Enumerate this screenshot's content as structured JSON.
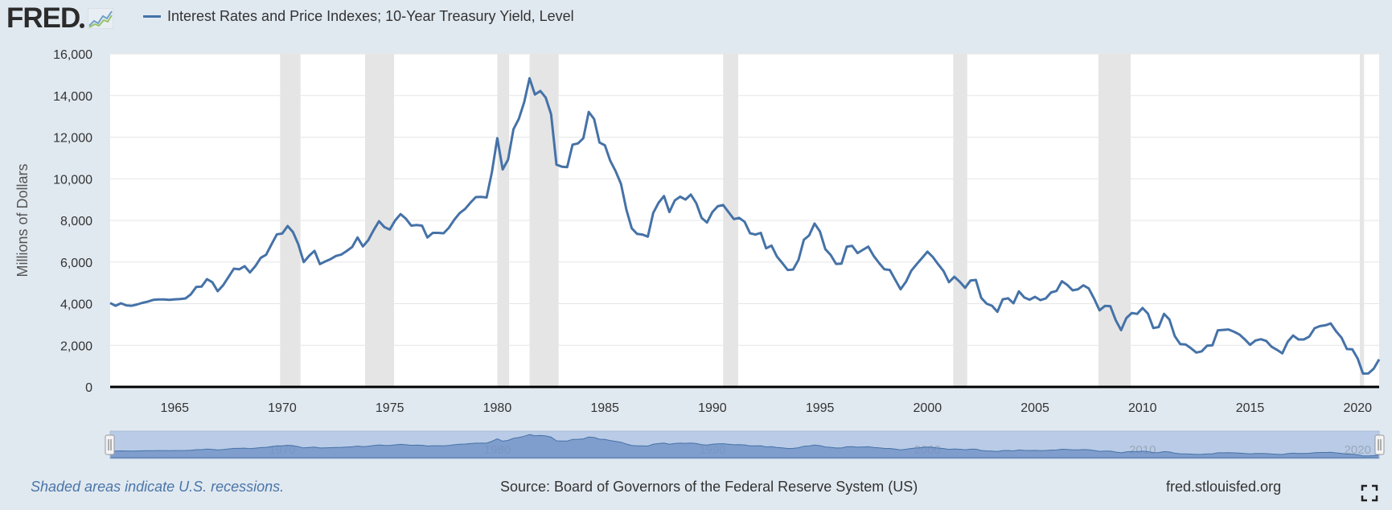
{
  "header": {
    "logo_text": "FRED",
    "logo_icon": "fred-graph-icon",
    "legend_label": "Interest Rates and Price Indexes; 10-Year Treasury Yield, Level"
  },
  "footer": {
    "recession_note": "Shaded areas indicate U.S. recessions.",
    "source": "Source: Board of Governors of the Federal Reserve System (US)",
    "url": "fred.stlouisfed.org",
    "fullscreen_icon": "fullscreen-icon"
  },
  "colors": {
    "series": "#4572a7",
    "recession": "#e5e5e5",
    "background": "#e1e9f0",
    "plot": "#ffffff"
  },
  "chart_data": {
    "type": "line",
    "title": "Interest Rates and Price Indexes; 10-Year Treasury Yield, Level",
    "xlabel": "",
    "ylabel": "Millions of Dollars",
    "xlim": [
      1962,
      2021
    ],
    "ylim": [
      0,
      16000
    ],
    "yticks": [
      0,
      2000,
      4000,
      6000,
      8000,
      10000,
      12000,
      14000,
      16000
    ],
    "ytick_labels": [
      "0",
      "2,000",
      "4,000",
      "6,000",
      "8,000",
      "10,000",
      "12,000",
      "14,000",
      "16,000"
    ],
    "xticks": [
      1965,
      1970,
      1975,
      1980,
      1985,
      1990,
      1995,
      2000,
      2005,
      2010,
      2015,
      2020
    ],
    "xtick_labels": [
      "1965",
      "1970",
      "1975",
      "1980",
      "1985",
      "1990",
      "1995",
      "2000",
      "2005",
      "2010",
      "2015",
      "2020"
    ],
    "navigator_labels": [
      "1970",
      "1980",
      "1990",
      "2000",
      "2010",
      "2020"
    ],
    "grid": true,
    "recessions": [
      [
        1969.9,
        1970.85
      ],
      [
        1973.85,
        1975.2
      ],
      [
        1980.0,
        1980.55
      ],
      [
        1981.5,
        1982.85
      ],
      [
        1990.5,
        1991.2
      ],
      [
        2001.2,
        2001.85
      ],
      [
        2007.95,
        2009.45
      ],
      [
        2020.1,
        2020.3
      ]
    ],
    "series": [
      {
        "name": "10-Year Treasury Yield",
        "x": [
          1962.0,
          1962.25,
          1962.5,
          1962.75,
          1963.0,
          1963.25,
          1963.5,
          1963.75,
          1964.0,
          1964.25,
          1964.5,
          1964.75,
          1965.0,
          1965.25,
          1965.5,
          1965.75,
          1966.0,
          1966.25,
          1966.5,
          1966.75,
          1967.0,
          1967.25,
          1967.5,
          1967.75,
          1968.0,
          1968.25,
          1968.5,
          1968.75,
          1969.0,
          1969.25,
          1969.5,
          1969.75,
          1970.0,
          1970.25,
          1970.5,
          1970.75,
          1971.0,
          1971.25,
          1971.5,
          1971.75,
          1972.0,
          1972.25,
          1972.5,
          1972.75,
          1973.0,
          1973.25,
          1973.5,
          1973.75,
          1974.0,
          1974.25,
          1974.5,
          1974.75,
          1975.0,
          1975.25,
          1975.5,
          1975.75,
          1976.0,
          1976.25,
          1976.5,
          1976.75,
          1977.0,
          1977.25,
          1977.5,
          1977.75,
          1978.0,
          1978.25,
          1978.5,
          1978.75,
          1979.0,
          1979.25,
          1979.5,
          1979.75,
          1980.0,
          1980.25,
          1980.5,
          1980.75,
          1981.0,
          1981.25,
          1981.5,
          1981.75,
          1982.0,
          1982.25,
          1982.5,
          1982.75,
          1983.0,
          1983.25,
          1983.5,
          1983.75,
          1984.0,
          1984.25,
          1984.5,
          1984.75,
          1985.0,
          1985.25,
          1985.5,
          1985.75,
          1986.0,
          1986.25,
          1986.5,
          1986.75,
          1987.0,
          1987.25,
          1987.5,
          1987.75,
          1988.0,
          1988.25,
          1988.5,
          1988.75,
          1989.0,
          1989.25,
          1989.5,
          1989.75,
          1990.0,
          1990.25,
          1990.5,
          1990.75,
          1991.0,
          1991.25,
          1991.5,
          1991.75,
          1992.0,
          1992.25,
          1992.5,
          1992.75,
          1993.0,
          1993.25,
          1993.5,
          1993.75,
          1994.0,
          1994.25,
          1994.5,
          1994.75,
          1995.0,
          1995.25,
          1995.5,
          1995.75,
          1996.0,
          1996.25,
          1996.5,
          1996.75,
          1997.0,
          1997.25,
          1997.5,
          1997.75,
          1998.0,
          1998.25,
          1998.5,
          1998.75,
          1999.0,
          1999.25,
          1999.5,
          1999.75,
          2000.0,
          2000.25,
          2000.5,
          2000.75,
          2001.0,
          2001.25,
          2001.5,
          2001.75,
          2002.0,
          2002.25,
          2002.5,
          2002.75,
          2003.0,
          2003.25,
          2003.5,
          2003.75,
          2004.0,
          2004.25,
          2004.5,
          2004.75,
          2005.0,
          2005.25,
          2005.5,
          2005.75,
          2006.0,
          2006.25,
          2006.5,
          2006.75,
          2007.0,
          2007.25,
          2007.5,
          2007.75,
          2008.0,
          2008.25,
          2008.5,
          2008.75,
          2009.0,
          2009.25,
          2009.5,
          2009.75,
          2010.0,
          2010.25,
          2010.5,
          2010.75,
          2011.0,
          2011.25,
          2011.5,
          2011.75,
          2012.0,
          2012.25,
          2012.5,
          2012.75,
          2013.0,
          2013.25,
          2013.5,
          2013.75,
          2014.0,
          2014.25,
          2014.5,
          2014.75,
          2015.0,
          2015.25,
          2015.5,
          2015.75,
          2016.0,
          2016.25,
          2016.5,
          2016.75,
          2017.0,
          2017.25,
          2017.5,
          2017.75,
          2018.0,
          2018.25,
          2018.5,
          2018.75,
          2019.0,
          2019.25,
          2019.5,
          2019.75,
          2020.0,
          2020.25,
          2020.5,
          2020.75,
          2021.0
        ],
        "y": [
          4030,
          3900,
          4020,
          3920,
          3900,
          3960,
          4040,
          4100,
          4180,
          4200,
          4200,
          4180,
          4210,
          4220,
          4250,
          4450,
          4800,
          4820,
          5180,
          5030,
          4600,
          4880,
          5280,
          5680,
          5650,
          5800,
          5500,
          5800,
          6200,
          6350,
          6850,
          7330,
          7370,
          7730,
          7440,
          6850,
          6000,
          6300,
          6540,
          5900,
          6030,
          6140,
          6290,
          6360,
          6530,
          6720,
          7180,
          6750,
          7050,
          7530,
          7960,
          7680,
          7560,
          8000,
          8300,
          8080,
          7750,
          7780,
          7750,
          7180,
          7400,
          7400,
          7380,
          7650,
          8030,
          8350,
          8550,
          8850,
          9120,
          9130,
          9100,
          10320,
          11950,
          10450,
          10920,
          12380,
          12880,
          13690,
          14830,
          14050,
          14220,
          13900,
          13100,
          10680,
          10580,
          10560,
          11640,
          11700,
          11950,
          13210,
          12870,
          11740,
          11610,
          10870,
          10370,
          9760,
          8520,
          7620,
          7350,
          7320,
          7220,
          8360,
          8850,
          9170,
          8400,
          8960,
          9140,
          9000,
          9240,
          8830,
          8120,
          7900,
          8400,
          8680,
          8740,
          8400,
          8060,
          8120,
          7930,
          7380,
          7320,
          7400,
          6660,
          6790,
          6270,
          5950,
          5620,
          5640,
          6100,
          7070,
          7280,
          7850,
          7470,
          6620,
          6340,
          5910,
          5920,
          6740,
          6780,
          6430,
          6590,
          6740,
          6290,
          5950,
          5650,
          5620,
          5150,
          4690,
          5050,
          5590,
          5900,
          6200,
          6500,
          6240,
          5890,
          5560,
          5030,
          5290,
          5050,
          4760,
          5110,
          5140,
          4280,
          4000,
          3900,
          3610,
          4210,
          4260,
          4020,
          4590,
          4300,
          4190,
          4330,
          4170,
          4250,
          4540,
          4610,
          5080,
          4900,
          4640,
          4690,
          4880,
          4730,
          4240,
          3680,
          3890,
          3880,
          3210,
          2730,
          3310,
          3550,
          3510,
          3790,
          3520,
          2830,
          2880,
          3510,
          3240,
          2440,
          2060,
          2040,
          1860,
          1650,
          1710,
          1980,
          2000,
          2720,
          2740,
          2760,
          2650,
          2520,
          2290,
          2020,
          2230,
          2290,
          2210,
          1930,
          1780,
          1610,
          2170,
          2470,
          2280,
          2280,
          2420,
          2820,
          2920,
          2960,
          3050,
          2670,
          2370,
          1820,
          1810,
          1370,
          640,
          650,
          880,
          1320
        ]
      }
    ]
  }
}
